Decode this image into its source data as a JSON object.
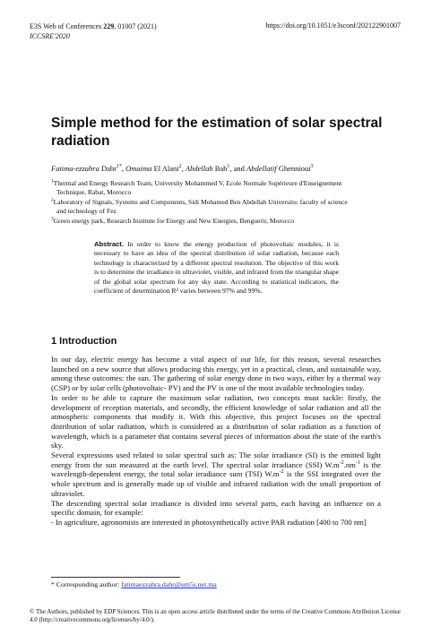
{
  "header": {
    "journal": [
      {
        "text": "E3S Web of Conferences "
      },
      {
        "text": "229",
        "bold": true
      },
      {
        "text": ", 01007 (2021)"
      }
    ],
    "doi": "https://doi.org/10.1051/e3sconf/202122901007",
    "conference": "ICCSRE'2020"
  },
  "title": "Simple method for the estimation of solar spectral radiation",
  "authors": [
    {
      "text": "Fatima-ezzahra",
      "italic": true
    },
    {
      "text": " Dahr"
    },
    {
      "text": "1*",
      "sup": true
    },
    {
      "text": ", "
    },
    {
      "text": "Omaima",
      "italic": true
    },
    {
      "text": " El Alani"
    },
    {
      "text": "2",
      "sup": true
    },
    {
      "text": ", "
    },
    {
      "text": "Abdellah",
      "italic": true
    },
    {
      "text": " Bah"
    },
    {
      "text": "1",
      "sup": true
    },
    {
      "text": ", and "
    },
    {
      "text": "Abdellatif",
      "italic": true
    },
    {
      "text": " Ghennioui"
    },
    {
      "text": "3",
      "sup": true
    }
  ],
  "affiliations": [
    [
      {
        "text": "1",
        "sup": true
      },
      {
        "text": "Thermal and Energy Research Team, University Mohammed V, Ecole Normale Supérieure d'Enseignement Technique, Rabat, Morocco"
      }
    ],
    [
      {
        "text": "2",
        "sup": true
      },
      {
        "text": "Laboratory of Signals, Systems and Components, Sidi Mohamed Ben Abdellah Universitu: faculty of science and technology of Fez"
      }
    ],
    [
      {
        "text": "3",
        "sup": true
      },
      {
        "text": "Green energy park, Research Institute for Energy and New Energies, Benguerir, Morocco"
      }
    ]
  ],
  "abstract": {
    "label": "Abstract.",
    "text": " In order to know the energy production of photovoltaic modules, it is necessary to have an idea of the spectral distribution of solar radiation, because each technology is characterized by a different spectral resolution. The objective of this work is to determine the irradiance in ultraviolet, visible, and infrared from the triangular shape of the global solar spectrum for any sky state. According to statistical indicators, the coefficient of determination R² varies between 97% and 99%."
  },
  "section": "1 Introduction",
  "paragraphs": [
    [
      {
        "text": "In our day, electric energy has become a vital aspect of our life, for this reason, several researches launched on a new source that allows producing this energy, yet in a practical, clean, and sustainable way, among these outcomes:  the sun. The gathering of solar energy done in two ways, either by a thermal way (CSP) or by solar cells (photovoltaic- PV) and the PV is one of the most available technologies today."
      }
    ],
    [
      {
        "text": "In order to be able to capture the maximum solar radiation, two concepts must tackle: firstly, the development of reception materials, and secondly, the efficient knowledge of solar radiation and all the atmospheric components that modify it. With this objective, this project focuses on the spectral distribution of solar radiation, which is considered as a distribution of solar radiation as a function of wavelength, which is a parameter that contains several pieces of information about the state of the earth's sky."
      }
    ],
    [
      {
        "text": "Several expressions used related to solar spectral such as: The solar irradiance (SI) is the emitted light energy from the sun measured at the earth level. The spectral solar irradiance (SSI) W.m"
      },
      {
        "text": "-2",
        "sup": true
      },
      {
        "text": ".nm"
      },
      {
        "text": "-1",
        "sup": true
      },
      {
        "text": " is the wavelength-dependent energy, the total solar irradiance sum (TSI) W.m"
      },
      {
        "text": "-2",
        "sup": true
      },
      {
        "text": " is the SSI integrated over the whole spectrum and is generally made up of visible and infrared radiation with the small proportion of ultraviolet."
      }
    ],
    [
      {
        "text": "The descending spectral solar irradiance is divided into several parts, each having an influence on a specific domain, for example:"
      }
    ],
    [
      {
        "text": "-  In agriculture, agronomists are interested in photosynthetically active PAR radiation [400 to 700 nm]"
      }
    ]
  ],
  "footnote": {
    "label": "* Corresponding author: ",
    "email": "fatimaezzahra.dahr@um5s.net.ma"
  },
  "footer": "© The Authors, published by EDP Sciences. This is an open access article distributed under the terms of the Creative Commons Attribution License 4.0 (http://creativecommons.org/licenses/by/4.0/)."
}
